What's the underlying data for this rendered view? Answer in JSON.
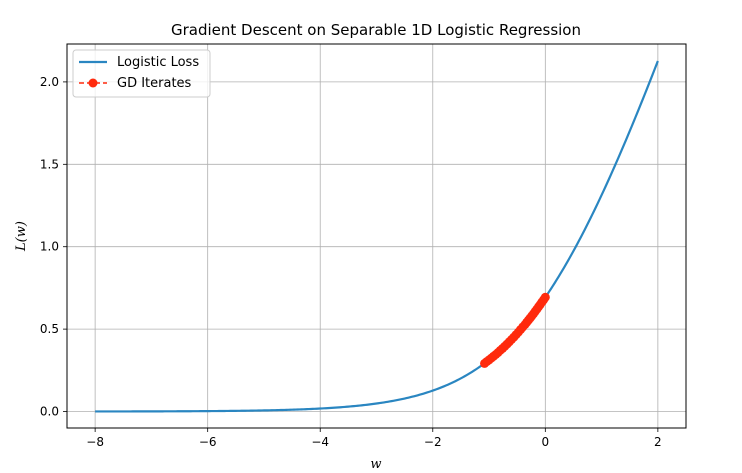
{
  "chart_data": {
    "type": "line",
    "title": "Gradient Descent on Separable 1D Logistic Regression",
    "xlabel": "w",
    "ylabel": "L(w)",
    "xlim": [
      -8.5,
      2.5
    ],
    "ylim": [
      -0.1,
      2.23
    ],
    "xticks": [
      -8,
      -6,
      -4,
      -2,
      0,
      2
    ],
    "yticks": [
      0.0,
      0.5,
      1.0,
      1.5,
      2.0
    ],
    "xtick_labels": [
      "−8",
      "−6",
      "−4",
      "−2",
      "0",
      "2"
    ],
    "ytick_labels": [
      "0.0",
      "0.5",
      "1.0",
      "1.5",
      "2.0"
    ],
    "grid": true,
    "legend_position": "top-left",
    "series": [
      {
        "name": "Logistic Loss",
        "style": "line",
        "color": "#2a86c1",
        "function": "log(1+exp(w))",
        "x_range": [
          -8,
          2
        ]
      },
      {
        "name": "GD Iterates",
        "style": "dashed-marker",
        "color": "#ff2a0d",
        "x": [
          0,
          -0.03,
          -0.06,
          -0.09,
          -0.12,
          -0.15,
          -0.18,
          -0.21,
          -0.24,
          -0.27,
          -0.3,
          -0.33,
          -0.36,
          -0.4,
          -0.44,
          -0.48,
          -0.52,
          -0.56,
          -0.6,
          -0.64,
          -0.68,
          -0.72,
          -0.76,
          -0.8,
          -0.84,
          -0.88,
          -0.92,
          -0.96,
          -1.0,
          -1.04,
          -1.08
        ],
        "y": [
          0.693,
          0.678,
          0.664,
          0.649,
          0.635,
          0.621,
          0.607,
          0.593,
          0.58,
          0.567,
          0.554,
          0.541,
          0.528,
          0.513,
          0.497,
          0.481,
          0.466,
          0.451,
          0.437,
          0.423,
          0.409,
          0.396,
          0.383,
          0.371,
          0.358,
          0.346,
          0.335,
          0.324,
          0.313,
          0.303,
          0.292
        ]
      }
    ]
  }
}
